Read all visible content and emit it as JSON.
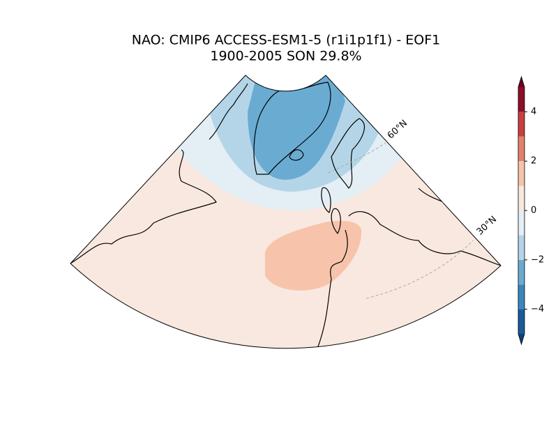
{
  "title": "NAO: CMIP6 ACCESS-ESM1-5 (r1i1p1f1) - EOF1",
  "subtitle": "1900-2005 SON 29.8%",
  "gridlines": [
    {
      "label": "60°N"
    },
    {
      "label": "30°N"
    }
  ],
  "colorbar": {
    "lim": [
      -5,
      5
    ],
    "levels": [
      -5,
      -4,
      -3,
      -2,
      -1,
      0,
      1,
      2,
      3,
      4,
      5
    ],
    "colors": [
      "#1b5a9a",
      "#3a86bd",
      "#6aabd2",
      "#b4d5e8",
      "#e3eef5",
      "#f9e8df",
      "#f7c4ab",
      "#e3826a",
      "#c8403e",
      "#8c0f27"
    ],
    "under_color": "#0f3f78",
    "over_color": "#6b0220",
    "ticks": [
      {
        "value": -4,
        "label": "−4"
      },
      {
        "value": -2,
        "label": "−2"
      },
      0,
      2,
      4
    ]
  }
}
